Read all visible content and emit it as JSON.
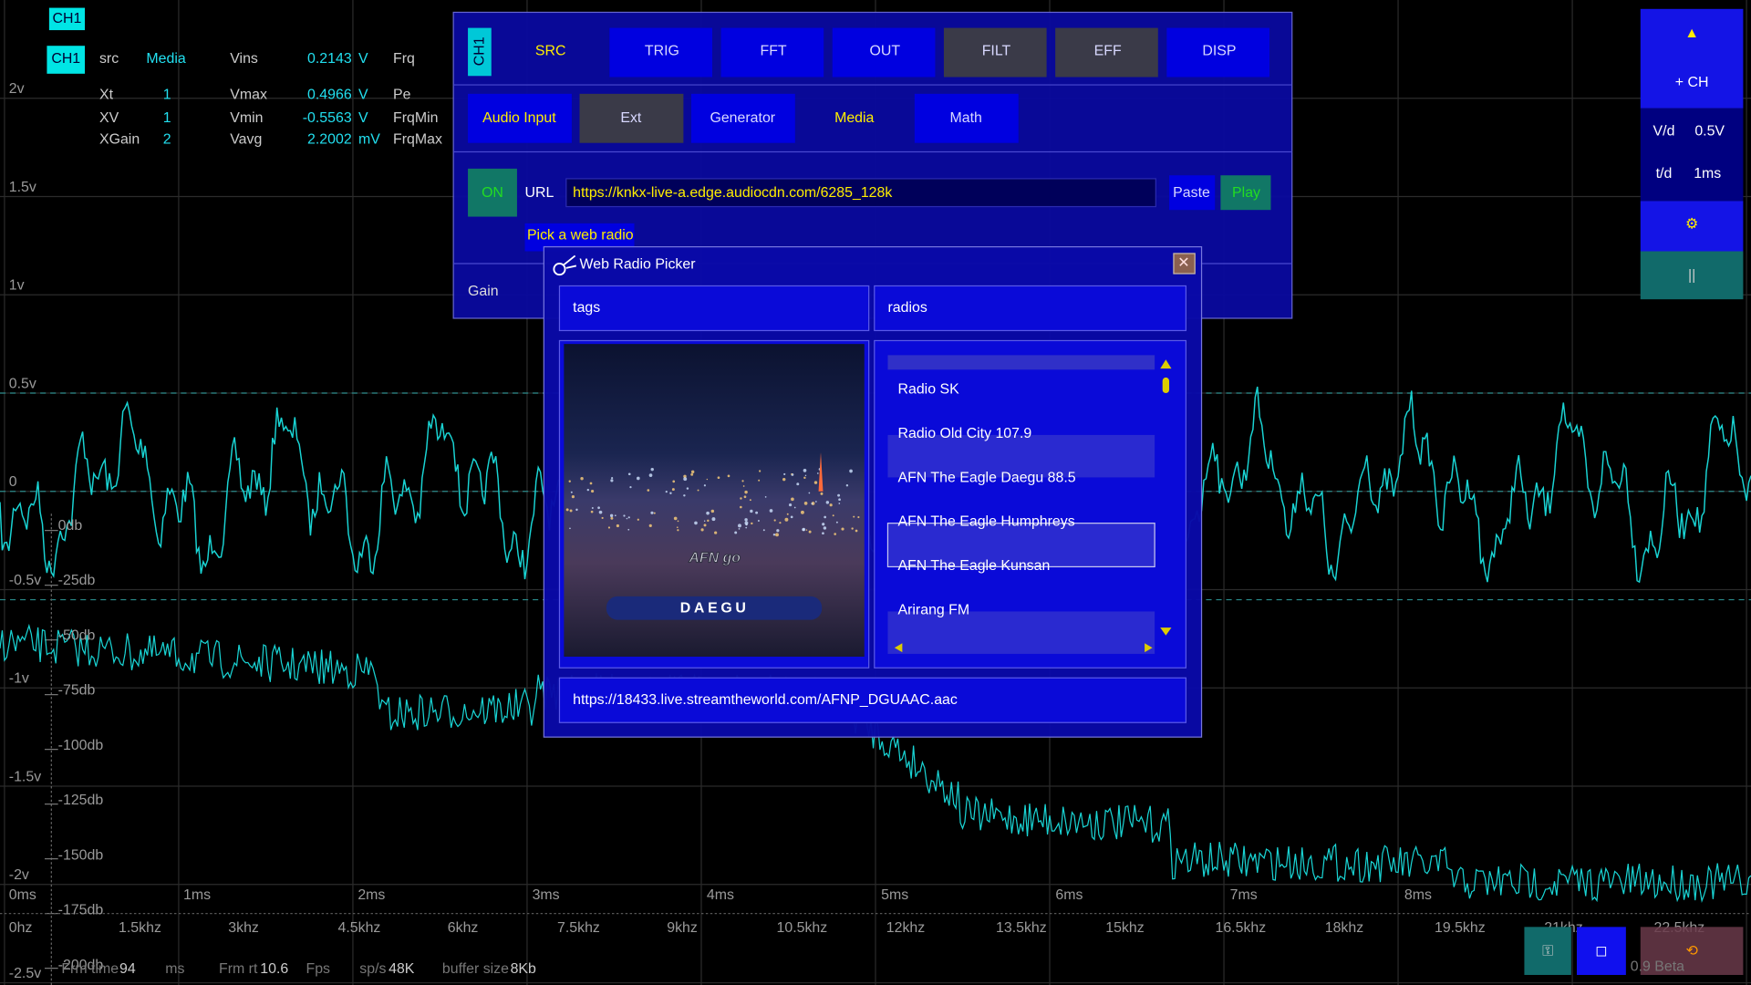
{
  "header": {
    "channel": "CH1"
  },
  "measurements": {
    "rows": [
      [
        "CH1",
        "src",
        "Media",
        "Vins",
        "0.2143",
        "V",
        "Frq"
      ],
      [
        "Xt",
        "1",
        "Vmax",
        "0.4966",
        "V",
        "Pe"
      ],
      [
        "XV",
        "1",
        "Vmin",
        "-0.5563",
        "V",
        "FrqMin"
      ],
      [
        "XGain",
        "2",
        "Vavg",
        "2.2002",
        "mV",
        "FrqMax"
      ]
    ]
  },
  "scope": {
    "volt_labels": [
      "2v",
      "1.5v",
      "1v",
      "0.5v",
      "0",
      "-0.5v",
      "-1v",
      "-1.5v",
      "-2v",
      "-2.5v"
    ],
    "db_labels": [
      "0db",
      "-25db",
      "-50db",
      "-75db",
      "-100db",
      "-125db",
      "-150db",
      "-175db",
      "-200db"
    ],
    "time_labels": [
      "0ms",
      "1ms",
      "2ms",
      "3ms",
      "4ms",
      "5ms",
      "6ms",
      "7ms",
      "8ms"
    ],
    "freq_labels": [
      "0hz",
      "1.5khz",
      "3khz",
      "4.5khz",
      "6khz",
      "7.5khz",
      "9khz",
      "10.5khz",
      "12khz",
      "13.5khz",
      "15khz",
      "16.5khz",
      "18khz",
      "19.5khz",
      "21khz",
      "22.5khz"
    ]
  },
  "status_bar": {
    "items": [
      "Frm time",
      "94",
      "ms",
      "Frm rt",
      "10.6",
      "Fps",
      "sp/s",
      "48K",
      "buffer size",
      "8Kb"
    ]
  },
  "side_panel": {
    "up": "▲",
    "add_channel": "+ CH",
    "volts_per_div_label": "V/d",
    "volts_per_div": "0.5V",
    "time_per_div_label": "t/d",
    "time_per_div": "1ms",
    "settings": "⚙",
    "pause": "||"
  },
  "bottom_buttons": {
    "key": "⚿",
    "window": "◻",
    "reset": "⟲",
    "version": "0.9 Beta"
  },
  "menu": {
    "channel_tab": "CH1",
    "tabs": [
      "SRC",
      "TRIG",
      "FFT",
      "OUT",
      "FILT",
      "EFF",
      "DISP"
    ],
    "sources": [
      "Audio Input",
      "Ext",
      "Generator",
      "Media",
      "Math"
    ],
    "power": "ON",
    "url_label": "URL",
    "url": "https://knkx-live-a.edge.audiocdn.com/6285_128k",
    "paste": "Paste",
    "play": "Play",
    "pick_radio": "Pick a web radio",
    "gain_label": "Gain"
  },
  "radio_picker": {
    "title": "Web Radio Picker",
    "close": "✕",
    "tags_label": "tags",
    "radios_label": "radios",
    "logo": "AFN go",
    "logo_city": "DAEGU",
    "stations": [
      "Radio SK",
      "Radio Old City 107.9",
      "AFN The Eagle Daegu 88.5",
      "AFN The Eagle Humphreys",
      "AFN The Eagle Kunsan",
      "Arirang FM"
    ],
    "selected": 3,
    "stream_url": "https://18433.live.streamtheworld.com/AFNP_DGUAAC.aac"
  }
}
